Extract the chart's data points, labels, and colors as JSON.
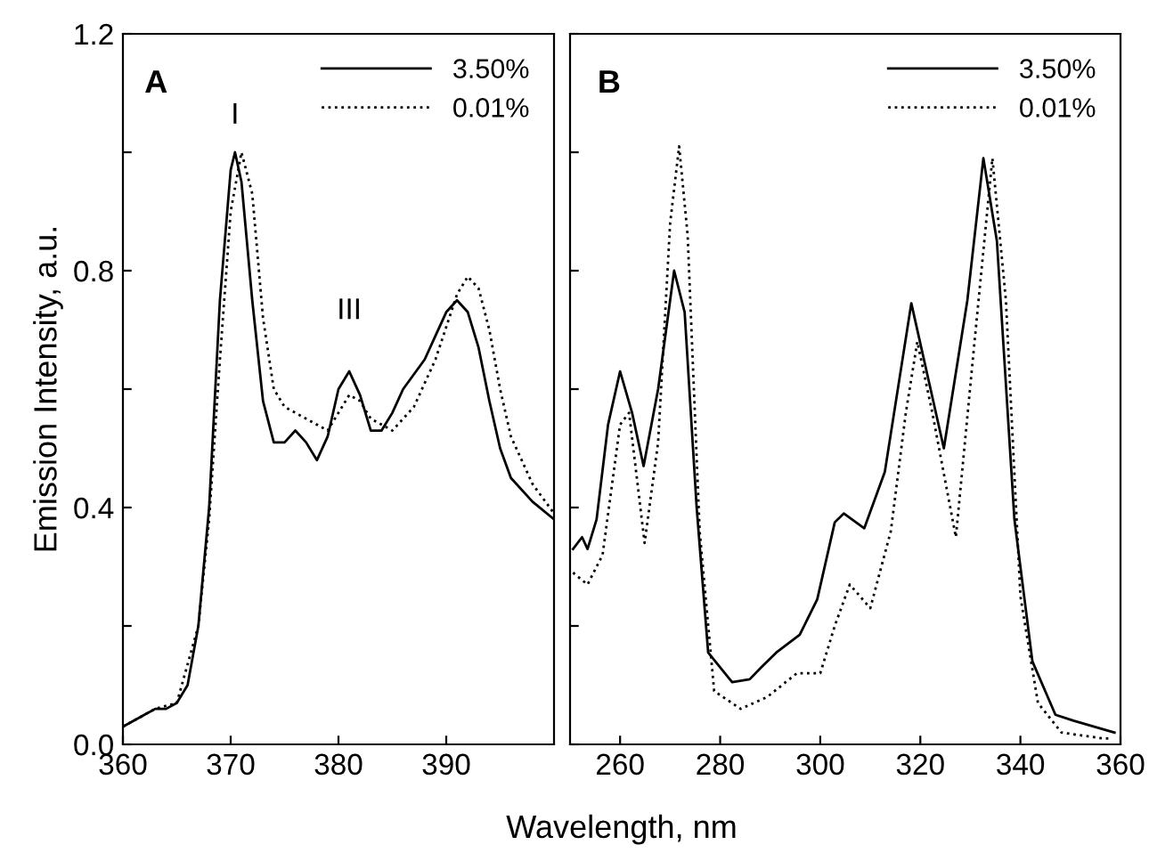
{
  "chart_data": [
    {
      "type": "line",
      "ylabel": "Emission Intensity, a.u.",
      "xlabel": "Wavelength, nm",
      "annotations": [
        "A",
        "I",
        "III"
      ],
      "xlim": [
        360,
        400
      ],
      "ylim": [
        0,
        1.2
      ],
      "xticks": [
        360,
        370,
        380,
        390
      ],
      "yticks": [
        {
          "value": 0,
          "label": "0.0"
        },
        {
          "value": 0.2,
          "label": null
        },
        0.4,
        {
          "value": 0.6,
          "label": null
        },
        0.8,
        {
          "value": 1.0,
          "label": null
        },
        1.2
      ],
      "legend": "top right",
      "grid": false,
      "series": [
        {
          "name": "3.50%",
          "color": "#000000",
          "line_style": "solid",
          "x": [
            360,
            362,
            363,
            364,
            365,
            366,
            367,
            368,
            369,
            370,
            370.4,
            371,
            372,
            373,
            374,
            375,
            376,
            377,
            378,
            379,
            380,
            381,
            382,
            383,
            384,
            385,
            386,
            388,
            389,
            390,
            391,
            392,
            393,
            394,
            395,
            396,
            398,
            400
          ],
          "values": [
            0.03,
            0.05,
            0.06,
            0.06,
            0.07,
            0.1,
            0.2,
            0.4,
            0.75,
            0.97,
            1.0,
            0.95,
            0.75,
            0.58,
            0.51,
            0.51,
            0.53,
            0.51,
            0.48,
            0.52,
            0.6,
            0.63,
            0.59,
            0.53,
            0.53,
            0.56,
            0.6,
            0.65,
            0.69,
            0.73,
            0.75,
            0.73,
            0.67,
            0.58,
            0.5,
            0.45,
            0.41,
            0.38
          ]
        },
        {
          "name": "0.01%",
          "color": "#000000",
          "line_style": "dotted",
          "x": [
            360,
            363,
            365,
            367,
            368,
            369,
            370,
            371,
            372,
            373,
            374,
            375,
            377,
            379,
            380,
            381,
            382,
            383,
            385,
            387,
            389,
            391,
            392,
            393,
            394,
            395,
            396,
            398,
            400
          ],
          "values": [
            0.03,
            0.06,
            0.07,
            0.2,
            0.38,
            0.65,
            0.9,
            1.0,
            0.93,
            0.72,
            0.6,
            0.57,
            0.55,
            0.53,
            0.56,
            0.59,
            0.58,
            0.55,
            0.53,
            0.57,
            0.65,
            0.76,
            0.79,
            0.77,
            0.7,
            0.6,
            0.52,
            0.44,
            0.39
          ]
        }
      ]
    },
    {
      "type": "line",
      "annotations": [
        "B"
      ],
      "xlim": [
        250,
        360
      ],
      "ylim": [
        0,
        1.2
      ],
      "xticks": [
        260,
        280,
        300,
        320,
        340,
        360
      ],
      "yticks": [
        {
          "value": 0,
          "label": null
        },
        {
          "value": 0.2,
          "label": null
        },
        {
          "value": 0.4,
          "label": null
        },
        {
          "value": 0.6,
          "label": null
        },
        {
          "value": 0.8,
          "label": null
        },
        {
          "value": 1.0,
          "label": null
        },
        {
          "value": 1.2,
          "label": null
        }
      ],
      "tick_labels": "x",
      "legend": "top right",
      "grid": false,
      "series": [
        {
          "name": "3.50%",
          "color": "#000000",
          "line_style": "solid",
          "x": [
            250.6,
            252.4,
            253.5,
            255.3,
            257.6,
            260,
            262.4,
            264.7,
            267.6,
            270.8,
            272.9,
            275.3,
            277.6,
            282.4,
            285.9,
            288.2,
            291.2,
            295.9,
            299.4,
            302.9,
            304.7,
            308.8,
            312.9,
            318.2,
            324.7,
            329.4,
            332.6,
            335.3,
            338.8,
            342.4,
            347,
            350.6,
            358.8
          ],
          "values": [
            0.33,
            0.35,
            0.33,
            0.38,
            0.54,
            0.63,
            0.56,
            0.47,
            0.6,
            0.8,
            0.73,
            0.4,
            0.155,
            0.105,
            0.11,
            0.13,
            0.155,
            0.185,
            0.245,
            0.375,
            0.39,
            0.365,
            0.46,
            0.745,
            0.5,
            0.75,
            0.99,
            0.85,
            0.38,
            0.14,
            0.05,
            0.04,
            0.02
          ]
        },
        {
          "name": "0.01%",
          "color": "#000000",
          "line_style": "dotted",
          "x": [
            250.6,
            253.5,
            256.5,
            260,
            261.8,
            264.9,
            267.6,
            270,
            271.8,
            273.5,
            275.9,
            278.8,
            284.1,
            289.4,
            295.3,
            300,
            302.9,
            305.9,
            310,
            314.1,
            317.1,
            319.4,
            322.4,
            327.1,
            330.6,
            334.4,
            337.1,
            340,
            343.5,
            348.2,
            356.5,
            358
          ],
          "values": [
            0.29,
            0.27,
            0.32,
            0.54,
            0.56,
            0.34,
            0.51,
            0.88,
            1.01,
            0.86,
            0.36,
            0.09,
            0.06,
            0.08,
            0.12,
            0.12,
            0.2,
            0.27,
            0.23,
            0.36,
            0.56,
            0.68,
            0.56,
            0.35,
            0.66,
            0.99,
            0.75,
            0.25,
            0.07,
            0.02,
            0.01,
            0.01
          ]
        }
      ]
    }
  ]
}
